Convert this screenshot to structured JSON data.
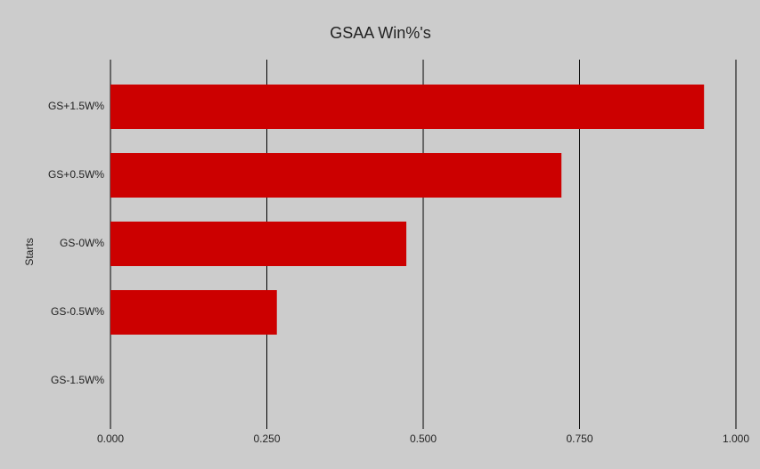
{
  "chart_data": {
    "type": "bar",
    "orientation": "horizontal",
    "title": "GSAA Win%'s",
    "y_label": "Starts",
    "categories": [
      "GS+1.5W%",
      "GS+0.5W%",
      "GS-0W%",
      "GS-0.5W%",
      "GS-1.5W%"
    ],
    "values": [
      0.949,
      0.721,
      0.473,
      0.266,
      0
    ],
    "color": "#cc0000",
    "xlim": [
      0,
      1
    ],
    "xticks": [
      {
        "value": 0,
        "label": "0.000"
      },
      {
        "value": 0.25,
        "label": "0.250"
      },
      {
        "value": 0.5,
        "label": "0.500"
      },
      {
        "value": 0.75,
        "label": "0.750"
      },
      {
        "value": 1,
        "label": "1.000"
      }
    ],
    "grid": true
  }
}
